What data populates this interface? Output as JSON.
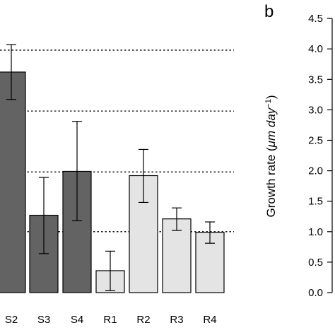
{
  "chart_data": {
    "type": "bar",
    "panel_label": "b",
    "ylabel": {
      "prefix": "Growth rate (",
      "mu": "μ",
      "unit": "m day",
      "exponent": "−1",
      "suffix": ")"
    },
    "ylim": [
      0,
      4.5
    ],
    "yticks": [
      "0.0",
      "0.5",
      "1.0",
      "1.5",
      "2.0",
      "2.5",
      "3.0",
      "3.5",
      "4.0",
      "4.5"
    ],
    "grid": false,
    "categories": [
      "S2",
      "S3",
      "S4",
      "R1",
      "R2",
      "R3",
      "R4"
    ],
    "values": [
      3.62,
      1.27,
      1.99,
      0.36,
      1.92,
      1.21,
      0.99
    ],
    "error_low": [
      3.17,
      0.64,
      1.18,
      0.03,
      1.48,
      1.02,
      0.81
    ],
    "error_high": [
      4.07,
      1.89,
      2.81,
      0.68,
      2.35,
      1.39,
      1.16
    ],
    "bar_colors": [
      "#636363",
      "#636363",
      "#636363",
      "#e4e4e4",
      "#e4e4e4",
      "#e4e4e4",
      "#e4e4e4"
    ],
    "reference_lines": [
      1.0,
      1.98,
      2.98,
      3.98
    ]
  }
}
